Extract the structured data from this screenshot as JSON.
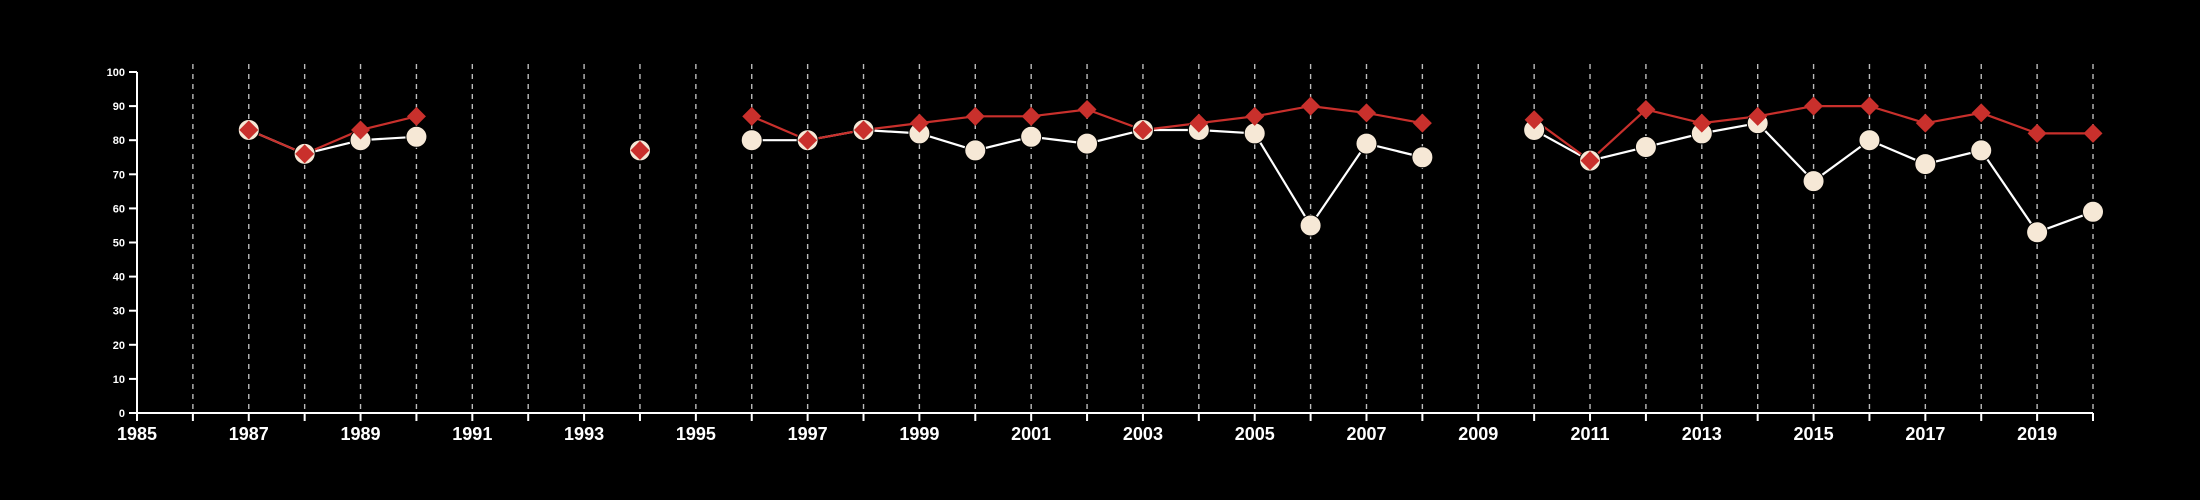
{
  "chart_data": {
    "type": "line",
    "title": "",
    "xlabel": "",
    "ylabel": "",
    "xlim": [
      1985,
      2020
    ],
    "ylim": [
      0,
      100
    ],
    "x_ticks": [
      1985,
      1987,
      1989,
      1991,
      1993,
      1995,
      1997,
      1999,
      2001,
      2003,
      2005,
      2007,
      2009,
      2011,
      2013,
      2015,
      2017,
      2019
    ],
    "y_ticks": [
      0,
      10,
      20,
      30,
      40,
      50,
      60,
      70,
      80,
      90,
      100
    ],
    "grid": "vertical dashed lines at every year",
    "legend": "none",
    "colors": {
      "background": "#000000",
      "axis": "#ffffff",
      "grid": "#bbbbbb",
      "series_circle_fill": "#f6e8d6",
      "series_circle_line": "#ffffff",
      "series_diamond": "#c9302c"
    },
    "series": [
      {
        "marker": "circle",
        "color": "#f6e8d6",
        "points": [
          [
            1987,
            83
          ],
          [
            1988,
            76
          ],
          [
            1989,
            80
          ],
          [
            1990,
            81
          ],
          [
            1994,
            77
          ],
          [
            1996,
            80
          ],
          [
            1997,
            80
          ],
          [
            1998,
            83
          ],
          [
            1999,
            82
          ],
          [
            2000,
            77
          ],
          [
            2001,
            81
          ],
          [
            2002,
            79
          ],
          [
            2003,
            83
          ],
          [
            2004,
            83
          ],
          [
            2005,
            82
          ],
          [
            2006,
            55
          ],
          [
            2007,
            79
          ],
          [
            2008,
            75
          ],
          [
            2010,
            83
          ],
          [
            2011,
            74
          ],
          [
            2012,
            78
          ],
          [
            2013,
            82
          ],
          [
            2014,
            85
          ],
          [
            2015,
            68
          ],
          [
            2016,
            80
          ],
          [
            2017,
            73
          ],
          [
            2018,
            77
          ],
          [
            2019,
            53
          ],
          [
            2020,
            59
          ]
        ]
      },
      {
        "marker": "diamond",
        "color": "#c9302c",
        "points": [
          [
            1987,
            83
          ],
          [
            1988,
            76
          ],
          [
            1989,
            83
          ],
          [
            1990,
            87
          ],
          [
            1994,
            77
          ],
          [
            1996,
            87
          ],
          [
            1997,
            80
          ],
          [
            1998,
            83
          ],
          [
            1999,
            85
          ],
          [
            2000,
            87
          ],
          [
            2001,
            87
          ],
          [
            2002,
            89
          ],
          [
            2003,
            83
          ],
          [
            2004,
            85
          ],
          [
            2005,
            87
          ],
          [
            2006,
            90
          ],
          [
            2007,
            88
          ],
          [
            2008,
            85
          ],
          [
            2010,
            86
          ],
          [
            2011,
            74
          ],
          [
            2012,
            89
          ],
          [
            2013,
            85
          ],
          [
            2014,
            87
          ],
          [
            2015,
            90
          ],
          [
            2016,
            90
          ],
          [
            2017,
            85
          ],
          [
            2018,
            88
          ],
          [
            2019,
            82
          ],
          [
            2020,
            82
          ]
        ]
      }
    ]
  }
}
